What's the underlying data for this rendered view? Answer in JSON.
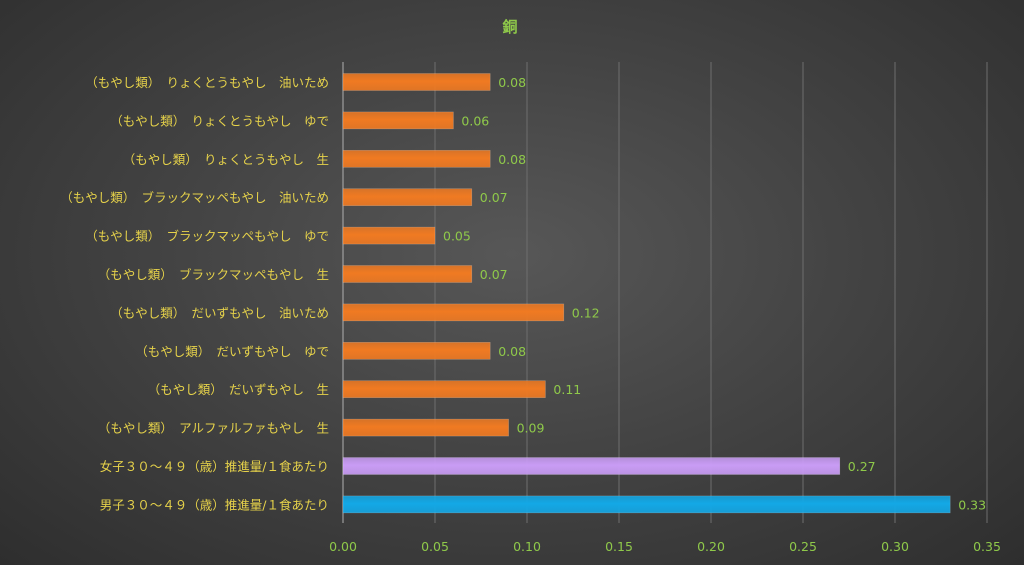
{
  "chart_data": {
    "type": "bar",
    "orientation": "horizontal",
    "title": "銅",
    "categories": [
      "（もやし類）　りょくとうもやし　油いため",
      "（もやし類）　りょくとうもやし　ゆで",
      "（もやし類）　りょくとうもやし　生",
      "（もやし類）　ブラックマッペもやし　油いため",
      "（もやし類）　ブラックマッペもやし　ゆで",
      "（もやし類）　ブラックマッペもやし　生",
      "（もやし類）　だいずもやし　油いため",
      "（もやし類）　だいずもやし　ゆで",
      "（もやし類）　だいずもやし　生",
      "（もやし類）　アルファルファもやし　生",
      "女子３０～４９（歳）推進量/１食あたり",
      "男子３０～４９（歳）推進量/１食あたり"
    ],
    "values": [
      0.08,
      0.06,
      0.08,
      0.07,
      0.05,
      0.07,
      0.12,
      0.08,
      0.11,
      0.09,
      0.27,
      0.33
    ],
    "data_labels": [
      "0.08",
      "0.06",
      "0.08",
      "0.07",
      "0.05",
      "0.07",
      "0.12",
      "0.08",
      "0.11",
      "0.09",
      "0.27",
      "0.33"
    ],
    "bar_colors": [
      "#f07a22",
      "#f07a22",
      "#f07a22",
      "#f07a22",
      "#f07a22",
      "#f07a22",
      "#f07a22",
      "#f07a22",
      "#f07a22",
      "#f07a22",
      "#c99cf5",
      "#13a8e6"
    ],
    "xlim": [
      0,
      0.35
    ],
    "xticks": [
      "0.00",
      "0.05",
      "0.10",
      "0.15",
      "0.20",
      "0.25",
      "0.30",
      "0.35"
    ],
    "xtick_values": [
      0,
      0.05,
      0.1,
      0.15,
      0.2,
      0.25,
      0.3,
      0.35
    ],
    "grid": true,
    "legend": "none",
    "colors": {
      "title": "#8fc94a",
      "category_label": "#e6d24a",
      "value_label": "#8fc94a",
      "tick_label": "#8fc94a",
      "grid": "#6e6e6e",
      "axis": "#b0b0b0"
    }
  }
}
